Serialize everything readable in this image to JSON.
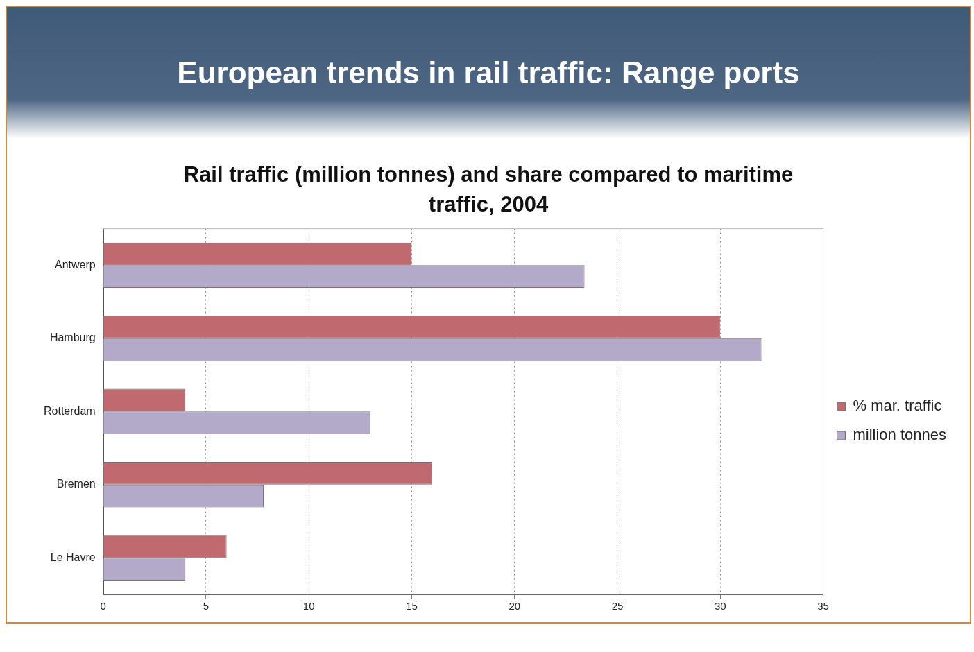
{
  "chart_data": {
    "type": "bar",
    "orientation": "horizontal",
    "title": "European trends in rail traffic: Range ports",
    "subtitle": "Rail traffic (million tonnes) and share compared to maritime traffic, 2004",
    "categories": [
      "Antwerp",
      "Hamburg",
      "Rotterdam",
      "Bremen",
      "Le Havre"
    ],
    "series": [
      {
        "name": "% mar. traffic",
        "color": "#c0696e",
        "values": [
          15,
          30,
          4,
          16,
          6
        ]
      },
      {
        "name": "million tonnes",
        "color": "#b3a9c9",
        "values": [
          23.4,
          32,
          13,
          7.8,
          4
        ]
      }
    ],
    "xlim": [
      0,
      35
    ],
    "xticks": [
      0,
      5,
      10,
      15,
      20,
      25,
      30,
      35
    ],
    "grid": "x",
    "legend": "right"
  }
}
